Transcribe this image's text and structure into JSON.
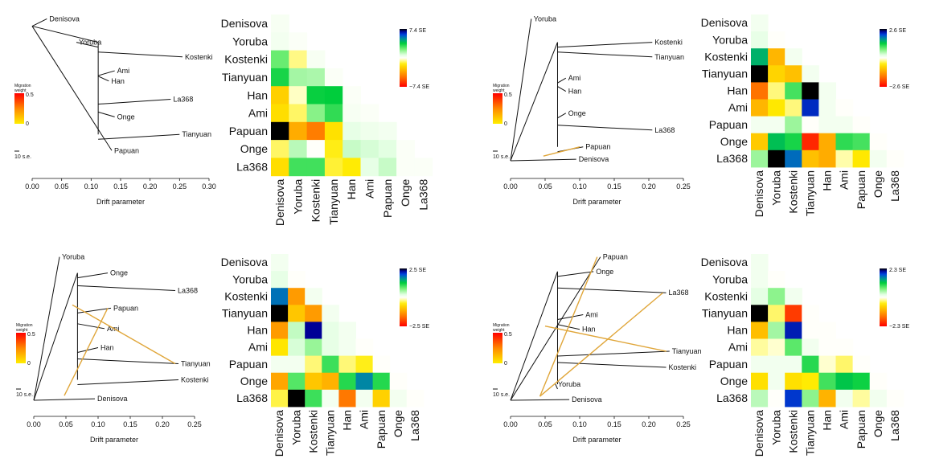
{
  "colorbar_title": [
    "Migration",
    "weight"
  ],
  "scale_bar_label": "10 s.e.",
  "panels": [
    {
      "tree": {
        "xlabel": "Drift parameter",
        "xticks": [
          "0.00",
          "0.05",
          "0.10",
          "0.15",
          "0.20",
          "0.25",
          "0.30"
        ],
        "xmax": 0.3,
        "weight_ticks": [
          "0.5",
          "0"
        ],
        "leaves": [
          {
            "name": "Denisova",
            "x": 0.025,
            "y": 0.03
          },
          {
            "name": "Yoruba",
            "x": 0.075,
            "y": 0.19
          },
          {
            "name": "Kostenki",
            "x": 0.255,
            "y": 0.29
          },
          {
            "name": "Ami",
            "x": 0.14,
            "y": 0.385
          },
          {
            "name": "Han",
            "x": 0.13,
            "y": 0.455
          },
          {
            "name": "La368",
            "x": 0.235,
            "y": 0.58
          },
          {
            "name": "Onge",
            "x": 0.14,
            "y": 0.7
          },
          {
            "name": "Tianyuan",
            "x": 0.25,
            "y": 0.82
          },
          {
            "name": "Papuan",
            "x": 0.135,
            "y": 0.93
          }
        ],
        "migrations": []
      },
      "chart_data": {
        "type": "heatmap",
        "row_labels": [
          "Denisova",
          "Yoruba",
          "Kostenki",
          "Tianyuan",
          "Han",
          "Ami",
          "Papuan",
          "Onge",
          "La368"
        ],
        "col_labels": [
          "Denisova",
          "Yoruba",
          "Kostenki",
          "Tianyuan",
          "Han",
          "Ami",
          "Papuan",
          "Onge",
          "La368"
        ],
        "scale_max": 7.4,
        "scale_top_label": "7.4 SE",
        "scale_bottom_label": "−7.4 SE",
        "values": [
          [
            0.2
          ],
          [
            0.3,
            0.1
          ],
          [
            2.4,
            -0.8,
            0.2
          ],
          [
            3.4,
            1.6,
            1.5,
            0.1
          ],
          [
            -2.4,
            -0.4,
            3.6,
            3.7,
            0.1
          ],
          [
            -2.0,
            -1.0,
            2.0,
            3.1,
            0.2,
            0.1
          ],
          [
            7.4,
            -3.4,
            -4.6,
            -1.9,
            0.6,
            0.4,
            0.3
          ],
          [
            -1.0,
            1.3,
            0.0,
            -1.5,
            1.1,
            0.9,
            0.7,
            0.1
          ],
          [
            -2.0,
            2.9,
            2.9,
            -1.3,
            -1.6,
            0.6,
            1.1,
            0.1,
            0.1
          ]
        ]
      }
    },
    {
      "tree": {
        "xlabel": "Drift parameter",
        "xticks": [
          "0.00",
          "0.05",
          "0.10",
          "0.15",
          "0.20",
          "0.25"
        ],
        "xmax": 0.25,
        "weight_ticks": [
          "0.5",
          "0"
        ],
        "leaves": [
          {
            "name": "Yoruba",
            "x": 0.03,
            "y": 0.03
          },
          {
            "name": "Kostenki",
            "x": 0.205,
            "y": 0.19
          },
          {
            "name": "Tianyuan",
            "x": 0.205,
            "y": 0.29
          },
          {
            "name": "Ami",
            "x": 0.08,
            "y": 0.435
          },
          {
            "name": "Han",
            "x": 0.08,
            "y": 0.525
          },
          {
            "name": "Onge",
            "x": 0.08,
            "y": 0.675
          },
          {
            "name": "La368",
            "x": 0.205,
            "y": 0.79
          },
          {
            "name": "Papuan",
            "x": 0.105,
            "y": 0.905
          },
          {
            "name": "Denisova",
            "x": 0.095,
            "y": 0.99
          }
        ],
        "migrations": [
          {
            "from": "Denisova",
            "to": "Papuan"
          }
        ]
      },
      "chart_data": {
        "type": "heatmap",
        "row_labels": [
          "Denisova",
          "Yoruba",
          "Kostenki",
          "Tianyuan",
          "Han",
          "Ami",
          "Papuan",
          "Onge",
          "La368"
        ],
        "col_labels": [
          "Denisova",
          "Yoruba",
          "Kostenki",
          "Tianyuan",
          "Han",
          "Ami",
          "Papuan",
          "Onge",
          "La368"
        ],
        "scale_max": 2.6,
        "scale_top_label": "2.6 SE",
        "scale_bottom_label": "−2.6 SE",
        "values": [
          [
            0.1
          ],
          [
            0.2,
            0.0
          ],
          [
            1.5,
            -1.1,
            0.1
          ],
          [
            2.6,
            -0.8,
            -1.0,
            0.1
          ],
          [
            -1.7,
            -0.3,
            1.0,
            2.6,
            0.1
          ],
          [
            -1.1,
            -0.6,
            -0.3,
            2.2,
            0.1,
            0.0
          ],
          [
            0.1,
            0.1,
            0.6,
            0.0,
            0.1,
            0.1,
            0.0
          ],
          [
            -0.9,
            1.4,
            1.2,
            -2.3,
            -1.2,
            1.1,
            1.0,
            0.0
          ],
          [
            0.6,
            2.6,
            1.9,
            -1.0,
            -1.2,
            -0.2,
            -0.6,
            0.1,
            0.0
          ]
        ]
      }
    },
    {
      "tree": {
        "xlabel": "Drift parameter",
        "xticks": [
          "0.00",
          "0.05",
          "0.10",
          "0.15",
          "0.20",
          "0.25"
        ],
        "xmax": 0.25,
        "weight_ticks": [
          "0.5",
          "0"
        ],
        "leaves": [
          {
            "name": "Yoruba",
            "x": 0.04,
            "y": 0.02
          },
          {
            "name": "Onge",
            "x": 0.115,
            "y": 0.13
          },
          {
            "name": "La368",
            "x": 0.22,
            "y": 0.25
          },
          {
            "name": "Papuan",
            "x": 0.12,
            "y": 0.37
          },
          {
            "name": "Ami",
            "x": 0.11,
            "y": 0.51
          },
          {
            "name": "Han",
            "x": 0.1,
            "y": 0.64
          },
          {
            "name": "Tianyuan",
            "x": 0.225,
            "y": 0.75
          },
          {
            "name": "Kostenki",
            "x": 0.225,
            "y": 0.86
          },
          {
            "name": "Denisova",
            "x": 0.095,
            "y": 0.99
          }
        ],
        "migrations": [
          {
            "from": "Denisova",
            "to": "Papuan"
          },
          {
            "from": "Papuan",
            "to": "Tianyuan"
          }
        ]
      },
      "chart_data": {
        "type": "heatmap",
        "row_labels": [
          "Denisova",
          "Yoruba",
          "Kostenki",
          "Tianyuan",
          "Han",
          "Ami",
          "Papuan",
          "Onge",
          "La368"
        ],
        "col_labels": [
          "Denisova",
          "Yoruba",
          "Kostenki",
          "Tianyuan",
          "Han",
          "Ami",
          "Papuan",
          "Onge",
          "La368"
        ],
        "scale_max": 2.5,
        "scale_top_label": "2.5 SE",
        "scale_bottom_label": "−2.5 SE",
        "values": [
          [
            0.1
          ],
          [
            0.2,
            0.0
          ],
          [
            1.8,
            -1.3,
            0.1
          ],
          [
            2.5,
            -0.9,
            -1.3,
            0.1
          ],
          [
            -1.3,
            0.4,
            2.3,
            0.2,
            0.1
          ],
          [
            -0.6,
            0.3,
            0.6,
            0.2,
            0.1,
            0.0
          ],
          [
            0.1,
            0.1,
            -0.3,
            1.0,
            -0.3,
            -0.5,
            0.0
          ],
          [
            -1.2,
            0.9,
            -0.9,
            -1.1,
            1.1,
            1.7,
            1.1,
            0.0
          ],
          [
            -0.4,
            2.5,
            1.0,
            0.1,
            -1.6,
            0.1,
            -0.8,
            0.1,
            0.0
          ]
        ]
      }
    },
    {
      "tree": {
        "xlabel": "Drift parameter",
        "xticks": [
          "0.00",
          "0.05",
          "0.10",
          "0.15",
          "0.20",
          "0.25"
        ],
        "xmax": 0.25,
        "weight_ticks": [
          "0.5",
          "0"
        ],
        "leaves": [
          {
            "name": "Papuan",
            "x": 0.13,
            "y": 0.02
          },
          {
            "name": "Onge",
            "x": 0.12,
            "y": 0.12
          },
          {
            "name": "La368",
            "x": 0.225,
            "y": 0.265
          },
          {
            "name": "Ami",
            "x": 0.105,
            "y": 0.415
          },
          {
            "name": "Han",
            "x": 0.1,
            "y": 0.515
          },
          {
            "name": "Tianyuan",
            "x": 0.23,
            "y": 0.665
          },
          {
            "name": "Kostenki",
            "x": 0.225,
            "y": 0.775
          },
          {
            "name": "Yoruba",
            "x": 0.065,
            "y": 0.89
          },
          {
            "name": "Denisova",
            "x": 0.085,
            "y": 0.995
          }
        ],
        "migrations": [
          {
            "from": "Denisova",
            "to": "Papuan"
          },
          {
            "from": "Denisova",
            "to": "La368"
          },
          {
            "from": "Han",
            "to": "Tianyuan"
          }
        ]
      },
      "chart_data": {
        "type": "heatmap",
        "row_labels": [
          "Denisova",
          "Yoruba",
          "Kostenki",
          "Tianyuan",
          "Han",
          "Ami",
          "Papuan",
          "Onge",
          "La368"
        ],
        "col_labels": [
          "Denisova",
          "Yoruba",
          "Kostenki",
          "Tianyuan",
          "Han",
          "Ami",
          "Papuan",
          "Onge",
          "La368"
        ],
        "scale_max": 2.3,
        "scale_top_label": "2.3 SE",
        "scale_bottom_label": "−2.3 SE",
        "values": [
          [
            0.1
          ],
          [
            0.1,
            0.0
          ],
          [
            0.2,
            0.6,
            0.1
          ],
          [
            2.3,
            -0.3,
            -1.9,
            0.0
          ],
          [
            -0.9,
            0.5,
            2.0,
            0.0,
            0.0
          ],
          [
            -0.2,
            -0.1,
            0.8,
            0.1,
            0.0,
            0.0
          ],
          [
            0.1,
            0.1,
            0.1,
            1.0,
            -0.1,
            -0.3,
            0.0
          ],
          [
            -0.6,
            0.1,
            -0.6,
            -0.5,
            0.9,
            1.2,
            1.1,
            0.0
          ],
          [
            0.4,
            0.0,
            1.9,
            0.6,
            -1.0,
            0.1,
            -0.2,
            0.1,
            0.0
          ]
        ]
      }
    }
  ]
}
